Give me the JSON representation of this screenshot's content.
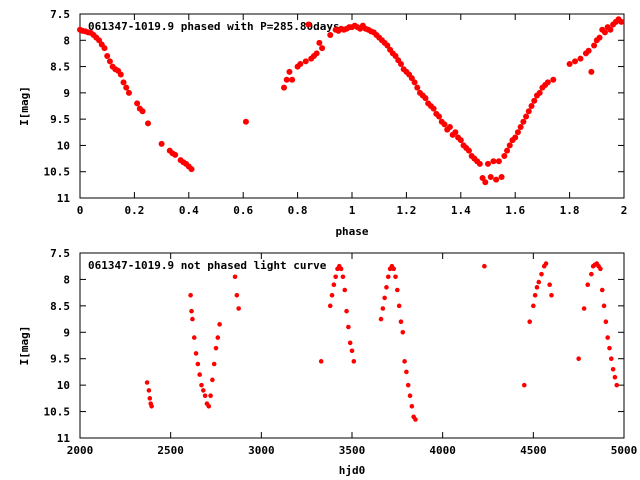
{
  "chart_data": [
    {
      "type": "scatter",
      "title": "061347-1019.9 phased with P=285.80days",
      "xlabel": "phase",
      "ylabel": "I[mag]",
      "xlim": [
        0,
        2
      ],
      "ylim": [
        7.5,
        11
      ],
      "y_inverted": true,
      "x_ticks": [
        "0",
        "0.2",
        "0.4",
        "0.6",
        "0.8",
        "1",
        "1.2",
        "1.4",
        "1.6",
        "1.8",
        "2"
      ],
      "y_ticks": [
        "7.5",
        "8",
        "8.5",
        "9",
        "9.5",
        "10",
        "10.5",
        "11"
      ],
      "grid": false,
      "marker_color": "#ff0000",
      "series": [
        {
          "points": [
            [
              0.0,
              7.8
            ],
            [
              0.01,
              7.82
            ],
            [
              0.02,
              7.83
            ],
            [
              0.03,
              7.85
            ],
            [
              0.04,
              7.86
            ],
            [
              0.05,
              7.9
            ],
            [
              0.06,
              7.95
            ],
            [
              0.07,
              8.0
            ],
            [
              0.08,
              8.08
            ],
            [
              0.09,
              8.15
            ],
            [
              0.1,
              8.3
            ],
            [
              0.11,
              8.4
            ],
            [
              0.12,
              8.5
            ],
            [
              0.13,
              8.55
            ],
            [
              0.14,
              8.58
            ],
            [
              0.15,
              8.65
            ],
            [
              0.16,
              8.8
            ],
            [
              0.17,
              8.9
            ],
            [
              0.18,
              9.0
            ],
            [
              0.21,
              9.2
            ],
            [
              0.22,
              9.3
            ],
            [
              0.23,
              9.35
            ],
            [
              0.25,
              9.58
            ],
            [
              0.3,
              9.97
            ],
            [
              0.33,
              10.1
            ],
            [
              0.34,
              10.15
            ],
            [
              0.35,
              10.18
            ],
            [
              0.37,
              10.28
            ],
            [
              0.38,
              10.32
            ],
            [
              0.39,
              10.35
            ],
            [
              0.4,
              10.4
            ],
            [
              0.41,
              10.45
            ],
            [
              0.61,
              9.55
            ],
            [
              0.75,
              8.9
            ],
            [
              0.76,
              8.75
            ],
            [
              0.77,
              8.6
            ],
            [
              0.78,
              8.75
            ],
            [
              0.8,
              8.5
            ],
            [
              0.81,
              8.45
            ],
            [
              0.83,
              8.4
            ],
            [
              0.84,
              7.7
            ],
            [
              0.85,
              8.35
            ],
            [
              0.86,
              8.3
            ],
            [
              0.87,
              8.25
            ],
            [
              0.88,
              8.05
            ],
            [
              0.89,
              8.15
            ],
            [
              0.92,
              7.9
            ],
            [
              0.94,
              7.8
            ],
            [
              0.95,
              7.82
            ],
            [
              0.96,
              7.78
            ],
            [
              0.97,
              7.8
            ],
            [
              0.98,
              7.78
            ],
            [
              0.99,
              7.75
            ],
            [
              1.0,
              7.75
            ],
            [
              1.01,
              7.72
            ],
            [
              1.02,
              7.75
            ],
            [
              1.03,
              7.78
            ],
            [
              1.04,
              7.72
            ],
            [
              1.05,
              7.78
            ],
            [
              1.06,
              7.8
            ],
            [
              1.07,
              7.83
            ],
            [
              1.08,
              7.85
            ],
            [
              1.09,
              7.9
            ],
            [
              1.1,
              7.95
            ],
            [
              1.11,
              8.0
            ],
            [
              1.12,
              8.05
            ],
            [
              1.13,
              8.1
            ],
            [
              1.14,
              8.18
            ],
            [
              1.15,
              8.25
            ],
            [
              1.16,
              8.3
            ],
            [
              1.17,
              8.38
            ],
            [
              1.18,
              8.45
            ],
            [
              1.19,
              8.55
            ],
            [
              1.2,
              8.6
            ],
            [
              1.21,
              8.65
            ],
            [
              1.22,
              8.72
            ],
            [
              1.23,
              8.8
            ],
            [
              1.24,
              8.9
            ],
            [
              1.25,
              9.0
            ],
            [
              1.26,
              9.05
            ],
            [
              1.27,
              9.1
            ],
            [
              1.28,
              9.2
            ],
            [
              1.29,
              9.25
            ],
            [
              1.3,
              9.3
            ],
            [
              1.31,
              9.4
            ],
            [
              1.32,
              9.45
            ],
            [
              1.33,
              9.55
            ],
            [
              1.34,
              9.6
            ],
            [
              1.35,
              9.7
            ],
            [
              1.36,
              9.65
            ],
            [
              1.37,
              9.8
            ],
            [
              1.38,
              9.75
            ],
            [
              1.39,
              9.85
            ],
            [
              1.4,
              9.9
            ],
            [
              1.41,
              10.0
            ],
            [
              1.42,
              10.05
            ],
            [
              1.43,
              10.1
            ],
            [
              1.44,
              10.2
            ],
            [
              1.45,
              10.25
            ],
            [
              1.46,
              10.3
            ],
            [
              1.47,
              10.35
            ],
            [
              1.48,
              10.62
            ],
            [
              1.49,
              10.7
            ],
            [
              1.5,
              10.35
            ],
            [
              1.51,
              10.6
            ],
            [
              1.52,
              10.3
            ],
            [
              1.53,
              10.65
            ],
            [
              1.54,
              10.3
            ],
            [
              1.55,
              10.6
            ],
            [
              1.56,
              10.2
            ],
            [
              1.57,
              10.1
            ],
            [
              1.58,
              10.0
            ],
            [
              1.59,
              9.9
            ],
            [
              1.6,
              9.85
            ],
            [
              1.61,
              9.75
            ],
            [
              1.62,
              9.65
            ],
            [
              1.63,
              9.55
            ],
            [
              1.64,
              9.45
            ],
            [
              1.65,
              9.35
            ],
            [
              1.66,
              9.25
            ],
            [
              1.67,
              9.15
            ],
            [
              1.68,
              9.05
            ],
            [
              1.69,
              9.0
            ],
            [
              1.7,
              8.9
            ],
            [
              1.71,
              8.85
            ],
            [
              1.72,
              8.8
            ],
            [
              1.74,
              8.75
            ],
            [
              1.8,
              8.45
            ],
            [
              1.82,
              8.4
            ],
            [
              1.84,
              8.35
            ],
            [
              1.86,
              8.25
            ],
            [
              1.87,
              8.2
            ],
            [
              1.88,
              8.6
            ],
            [
              1.89,
              8.1
            ],
            [
              1.9,
              8.0
            ],
            [
              1.91,
              7.95
            ],
            [
              1.92,
              7.8
            ],
            [
              1.93,
              7.85
            ],
            [
              1.94,
              7.75
            ],
            [
              1.95,
              7.8
            ],
            [
              1.96,
              7.7
            ],
            [
              1.97,
              7.65
            ],
            [
              1.98,
              7.6
            ],
            [
              1.99,
              7.65
            ]
          ]
        }
      ]
    },
    {
      "type": "scatter",
      "title": "061347-1019.9 not phased light curve",
      "xlabel": "hjd0",
      "ylabel": "I[mag]",
      "xlim": [
        2000,
        5000
      ],
      "ylim": [
        7.5,
        11
      ],
      "y_inverted": true,
      "x_ticks": [
        "2000",
        "2500",
        "3000",
        "3500",
        "4000",
        "4500",
        "5000"
      ],
      "y_ticks": [
        "7.5",
        "8",
        "8.5",
        "9",
        "9.5",
        "10",
        "10.5",
        "11"
      ],
      "grid": false,
      "marker_color": "#ff0000",
      "series": [
        {
          "points": [
            [
              2370,
              9.95
            ],
            [
              2380,
              10.1
            ],
            [
              2385,
              10.25
            ],
            [
              2390,
              10.35
            ],
            [
              2395,
              10.4
            ],
            [
              2610,
              8.3
            ],
            [
              2615,
              8.6
            ],
            [
              2620,
              8.75
            ],
            [
              2630,
              9.1
            ],
            [
              2640,
              9.4
            ],
            [
              2650,
              9.6
            ],
            [
              2660,
              9.8
            ],
            [
              2670,
              10.0
            ],
            [
              2680,
              10.1
            ],
            [
              2690,
              10.2
            ],
            [
              2700,
              10.35
            ],
            [
              2710,
              10.4
            ],
            [
              2720,
              10.2
            ],
            [
              2730,
              9.9
            ],
            [
              2740,
              9.6
            ],
            [
              2750,
              9.3
            ],
            [
              2760,
              9.1
            ],
            [
              2770,
              8.85
            ],
            [
              2855,
              7.95
            ],
            [
              2865,
              8.3
            ],
            [
              2875,
              8.55
            ],
            [
              3330,
              9.55
            ],
            [
              3380,
              8.5
            ],
            [
              3390,
              8.3
            ],
            [
              3400,
              8.1
            ],
            [
              3410,
              7.95
            ],
            [
              3420,
              7.8
            ],
            [
              3430,
              7.75
            ],
            [
              3440,
              7.8
            ],
            [
              3450,
              7.95
            ],
            [
              3460,
              8.2
            ],
            [
              3470,
              8.6
            ],
            [
              3480,
              8.9
            ],
            [
              3490,
              9.2
            ],
            [
              3500,
              9.35
            ],
            [
              3510,
              9.55
            ],
            [
              3660,
              8.75
            ],
            [
              3670,
              8.55
            ],
            [
              3680,
              8.35
            ],
            [
              3690,
              8.15
            ],
            [
              3700,
              7.95
            ],
            [
              3710,
              7.8
            ],
            [
              3720,
              7.75
            ],
            [
              3730,
              7.8
            ],
            [
              3740,
              7.95
            ],
            [
              3750,
              8.2
            ],
            [
              3760,
              8.5
            ],
            [
              3770,
              8.8
            ],
            [
              3780,
              9.0
            ],
            [
              3790,
              9.55
            ],
            [
              3800,
              9.75
            ],
            [
              3810,
              10.0
            ],
            [
              3820,
              10.2
            ],
            [
              3830,
              10.4
            ],
            [
              3840,
              10.6
            ],
            [
              3850,
              10.65
            ],
            [
              4230,
              7.75
            ],
            [
              4450,
              10.0
            ],
            [
              4480,
              8.8
            ],
            [
              4500,
              8.5
            ],
            [
              4510,
              8.3
            ],
            [
              4520,
              8.15
            ],
            [
              4530,
              8.05
            ],
            [
              4545,
              7.9
            ],
            [
              4560,
              7.75
            ],
            [
              4570,
              7.7
            ],
            [
              4590,
              8.1
            ],
            [
              4600,
              8.3
            ],
            [
              4750,
              9.5
            ],
            [
              4780,
              8.55
            ],
            [
              4800,
              8.1
            ],
            [
              4820,
              7.9
            ],
            [
              4830,
              7.75
            ],
            [
              4840,
              7.72
            ],
            [
              4850,
              7.7
            ],
            [
              4860,
              7.75
            ],
            [
              4870,
              7.8
            ],
            [
              4880,
              8.2
            ],
            [
              4890,
              8.5
            ],
            [
              4900,
              8.8
            ],
            [
              4910,
              9.1
            ],
            [
              4920,
              9.3
            ],
            [
              4930,
              9.5
            ],
            [
              4940,
              9.7
            ],
            [
              4950,
              9.85
            ],
            [
              4960,
              10.0
            ]
          ]
        }
      ]
    }
  ]
}
